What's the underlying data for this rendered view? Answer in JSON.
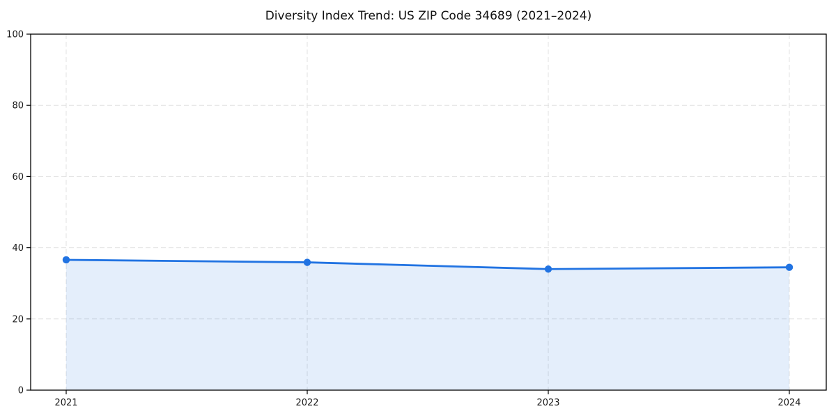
{
  "figure": {
    "background": "#ffffff"
  },
  "chart_data": {
    "type": "area",
    "title": "Diversity Index Trend: US ZIP Code 34689 (2021–2024)",
    "categories": [
      "2021",
      "2022",
      "2023",
      "2024"
    ],
    "values": [
      36.6,
      35.9,
      34.0,
      34.5
    ],
    "xlabel": "",
    "ylabel": "",
    "ylim": [
      0,
      100
    ],
    "yticks": [
      0,
      20,
      40,
      60,
      80,
      100
    ],
    "grid": true,
    "grid_style": "dashed",
    "legend": false,
    "line_color": "#2173E2",
    "marker_color": "#2173E2",
    "fill_opacity": 0.12,
    "axis_color": "#000000",
    "tick_label_color": "#1a1a1a",
    "gridline_color": "#e0e0e0"
  }
}
